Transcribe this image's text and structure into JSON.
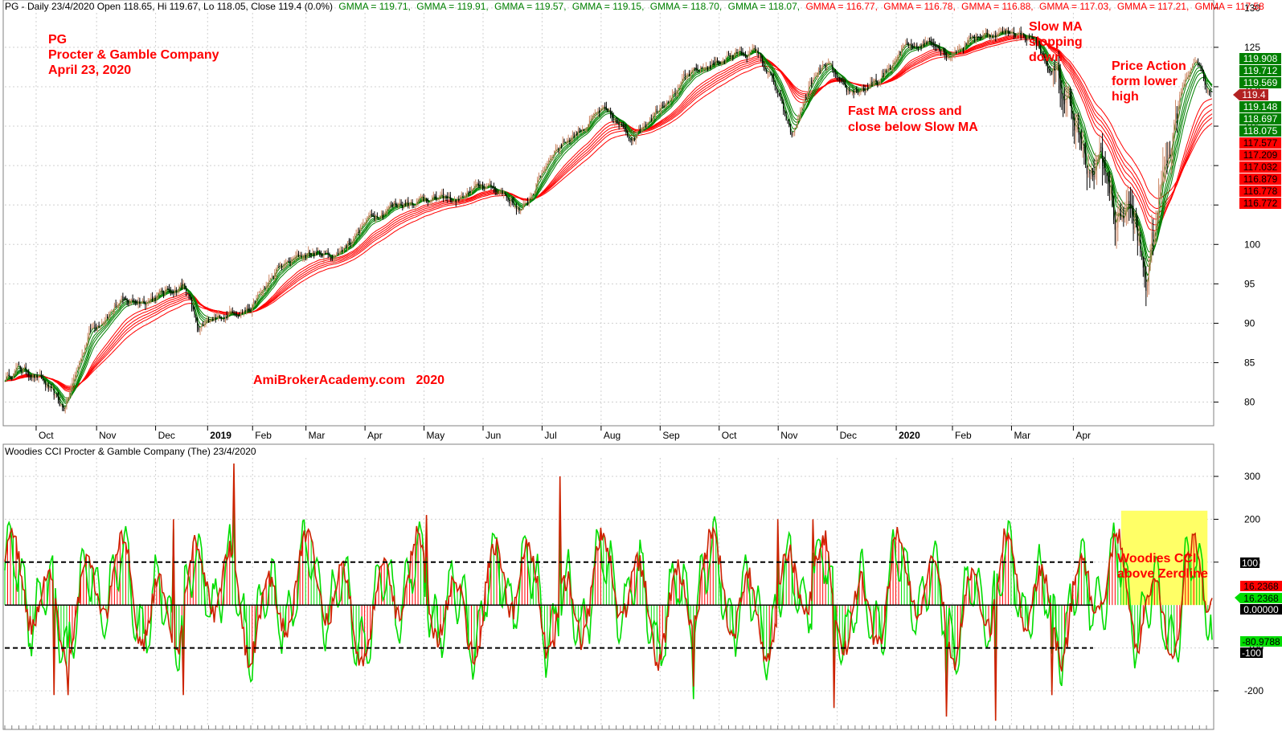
{
  "header": {
    "title": "PG - Daily 23/4/2020 Open 118.65, Hi 119.67, Lo 118.05, Close 119.4 (0.0%)",
    "gmma": [
      {
        "text": "GMMA = 119.71,",
        "color": "#008000"
      },
      {
        "text": "GMMA = 119.91,",
        "color": "#008000"
      },
      {
        "text": "GMMA = 119.57,",
        "color": "#008000"
      },
      {
        "text": "GMMA = 119.15,",
        "color": "#008000"
      },
      {
        "text": "GMMA = 118.70,",
        "color": "#008000"
      },
      {
        "text": "GMMA = 118.07,",
        "color": "#008000"
      },
      {
        "text": "GMMA = 116.77,",
        "color": "#ff0000"
      },
      {
        "text": "GMMA = 116.78,",
        "color": "#ff0000"
      },
      {
        "text": "GMMA = 116.88,",
        "color": "#ff0000"
      },
      {
        "text": "GMMA = 117.03,",
        "color": "#ff0000"
      },
      {
        "text": "GMMA = 117.21,",
        "color": "#ff0000"
      },
      {
        "text": "GMMA = 117.58",
        "color": "#ff0000"
      }
    ]
  },
  "annotations": {
    "company_lines": [
      "PG",
      "Procter & Gamble Company",
      "April 23, 2020"
    ],
    "watermark": "AmiBrokerAcademy.com   2020",
    "fast_ma": [
      "Fast MA cross and",
      "close below Slow MA"
    ],
    "slow_ma": [
      "Slow MA",
      "slopping",
      "down"
    ],
    "price_action": [
      "Price Action",
      "form lower",
      "high"
    ],
    "woodies_note": [
      "Woodies CCI",
      "above Zeroline"
    ]
  },
  "price_tags": {
    "green": [
      "119.908",
      "119.712",
      "119.569"
    ],
    "close": "119.4",
    "green2": [
      "119.148",
      "118.697",
      "118.075"
    ],
    "red": [
      "117.577",
      "117.209",
      "117.032",
      "116.879",
      "116.778",
      "116.772"
    ]
  },
  "cci_tags": {
    "hundred": "100",
    "cci_red": "16.2368",
    "cci_green": "16.2368",
    "zero": "0.00000",
    "turbo": "-80.9788",
    "minus_hundred": "-100"
  },
  "colors": {
    "fast": "#008000",
    "slow": "#ff0000",
    "cci_up": "#ff0000",
    "cci_green": "#00dd00",
    "highlight": "#ffff66",
    "bull_candle": "#cc8866",
    "bear_candle": "#000000"
  },
  "chart_data": [
    {
      "type": "candlestick",
      "title": "PG - Daily",
      "ylim": [
        77,
        131
      ],
      "y_ticks": [
        80,
        85,
        90,
        95,
        100,
        105,
        110,
        115,
        120,
        125,
        130
      ],
      "x_labels": [
        "Oct",
        "Nov",
        "Dec",
        "2019",
        "Feb",
        "Mar",
        "Apr",
        "May",
        "Jun",
        "Jul",
        "Aug",
        "Sep",
        "Oct",
        "Nov",
        "Dec",
        "2020",
        "Feb",
        "Mar",
        "Apr"
      ],
      "close_anchors": [
        [
          0,
          83.0
        ],
        [
          10,
          84.5
        ],
        [
          25,
          83.0
        ],
        [
          42,
          79.0
        ],
        [
          60,
          89.0
        ],
        [
          80,
          92.5
        ],
        [
          100,
          93.0
        ],
        [
          128,
          95.0
        ],
        [
          138,
          89.0
        ],
        [
          160,
          91.5
        ],
        [
          175,
          92.0
        ],
        [
          195,
          97.0
        ],
        [
          215,
          99.0
        ],
        [
          235,
          98.5
        ],
        [
          260,
          103.5
        ],
        [
          275,
          105.0
        ],
        [
          300,
          106.0
        ],
        [
          320,
          105.5
        ],
        [
          340,
          107.5
        ],
        [
          355,
          106.5
        ],
        [
          368,
          104.0
        ],
        [
          390,
          112.0
        ],
        [
          405,
          114.0
        ],
        [
          425,
          117.0
        ],
        [
          445,
          113.5
        ],
        [
          470,
          118.5
        ],
        [
          488,
          121.5
        ],
        [
          515,
          124.0
        ],
        [
          535,
          124.5
        ],
        [
          548,
          120.0
        ],
        [
          560,
          113.5
        ],
        [
          572,
          120.0
        ],
        [
          585,
          123.0
        ],
        [
          598,
          119.0
        ],
        [
          622,
          120.5
        ],
        [
          640,
          125.0
        ],
        [
          660,
          126.0
        ],
        [
          672,
          124.0
        ],
        [
          690,
          126.5
        ],
        [
          718,
          127.0
        ],
        [
          732,
          126.0
        ],
        [
          748,
          120.5
        ],
        [
          762,
          116.0
        ],
        [
          772,
          107.0
        ],
        [
          780,
          112.0
        ],
        [
          790,
          103.0
        ],
        [
          800,
          105.0
        ],
        [
          812,
          95.0
        ],
        [
          825,
          110.0
        ],
        [
          838,
          120.5
        ],
        [
          848,
          124.0
        ],
        [
          855,
          119.4
        ]
      ]
    },
    {
      "type": "line",
      "title": "Woodies CCI Procter & Gamble Company (The) 23/4/2020",
      "ylim": [
        -290,
        375
      ],
      "y_ticks": [
        300,
        200,
        100,
        -100,
        -200
      ],
      "reference_lines": [
        100,
        0,
        -100
      ],
      "highlight_range": {
        "x": [
          800,
          850
        ],
        "y": [
          0,
          220
        ]
      },
      "series": [
        {
          "name": "",
          "note": "CCI (red/green)",
          "last": 16.2368
        },
        {
          "name": "",
          "note": "Turbo CCI",
          "last": -80.9788
        }
      ]
    }
  ]
}
